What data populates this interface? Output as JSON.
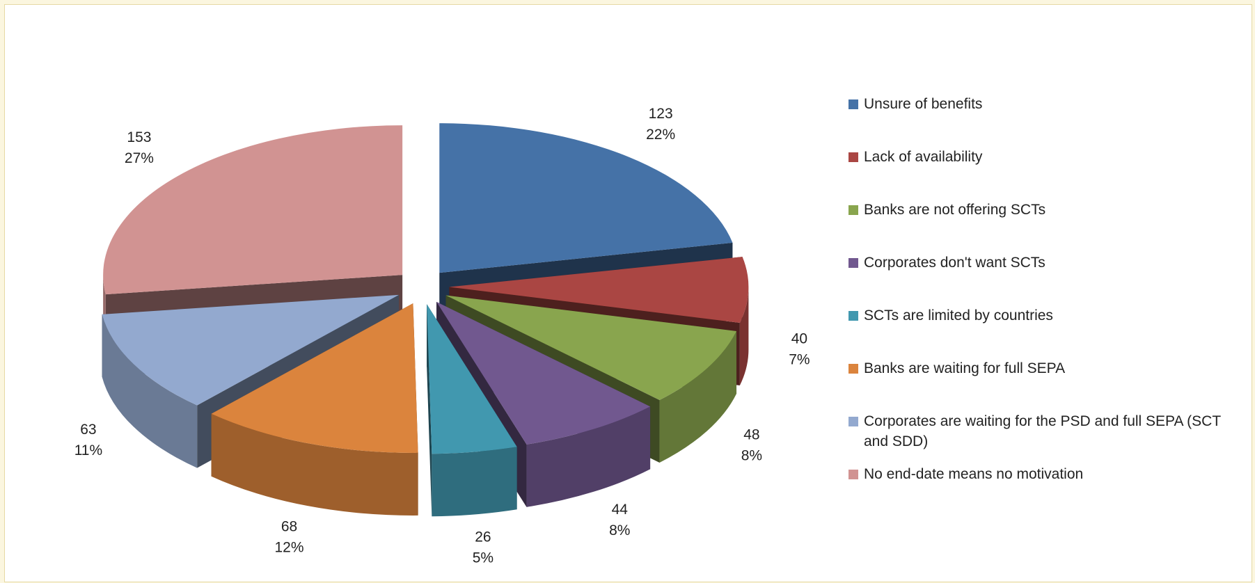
{
  "chart_data": {
    "type": "pie",
    "categories": [
      "Unsure of benefits",
      "Lack of availability",
      "Banks are not offering SCTs",
      "Corporates don't want SCTs",
      "SCTs are limited by countries",
      "Banks are waiting for full SEPA",
      "Corporates are waiting for the PSD and full SEPA (SCT and SDD)",
      "No end-date means no motivation"
    ],
    "values": [
      123,
      40,
      48,
      44,
      26,
      68,
      63,
      153
    ],
    "percent_labels": [
      "22%",
      "7%",
      "8%",
      "8%",
      "5%",
      "12%",
      "11%",
      "27%"
    ],
    "colors": [
      "#4572a7",
      "#aa4643",
      "#89a54e",
      "#71588f",
      "#4198af",
      "#db843d",
      "#93a9cf",
      "#d19392"
    ],
    "legend": "right"
  }
}
